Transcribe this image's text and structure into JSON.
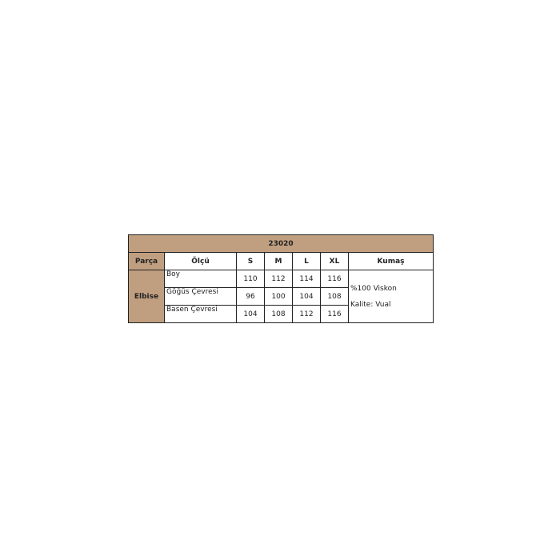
{
  "title": "23020",
  "headers": [
    "Parça",
    "Ölçü",
    "S",
    "M",
    "L",
    "XL",
    "Kumaş"
  ],
  "part": "Elbise",
  "rows": [
    {
      "label": "Boy",
      "values": [
        "110",
        "112",
        "114",
        "116"
      ]
    },
    {
      "label": "Göğüs Çevresi",
      "values": [
        "96",
        "100",
        "104",
        "108"
      ]
    },
    {
      "label": "Basen Çevresi",
      "values": [
        "104",
        "108",
        "112",
        "116"
      ]
    }
  ],
  "fabric": [
    "%100 Viskon",
    "Kalite: Vual"
  ],
  "colors": {
    "header": "#c09f80"
  }
}
